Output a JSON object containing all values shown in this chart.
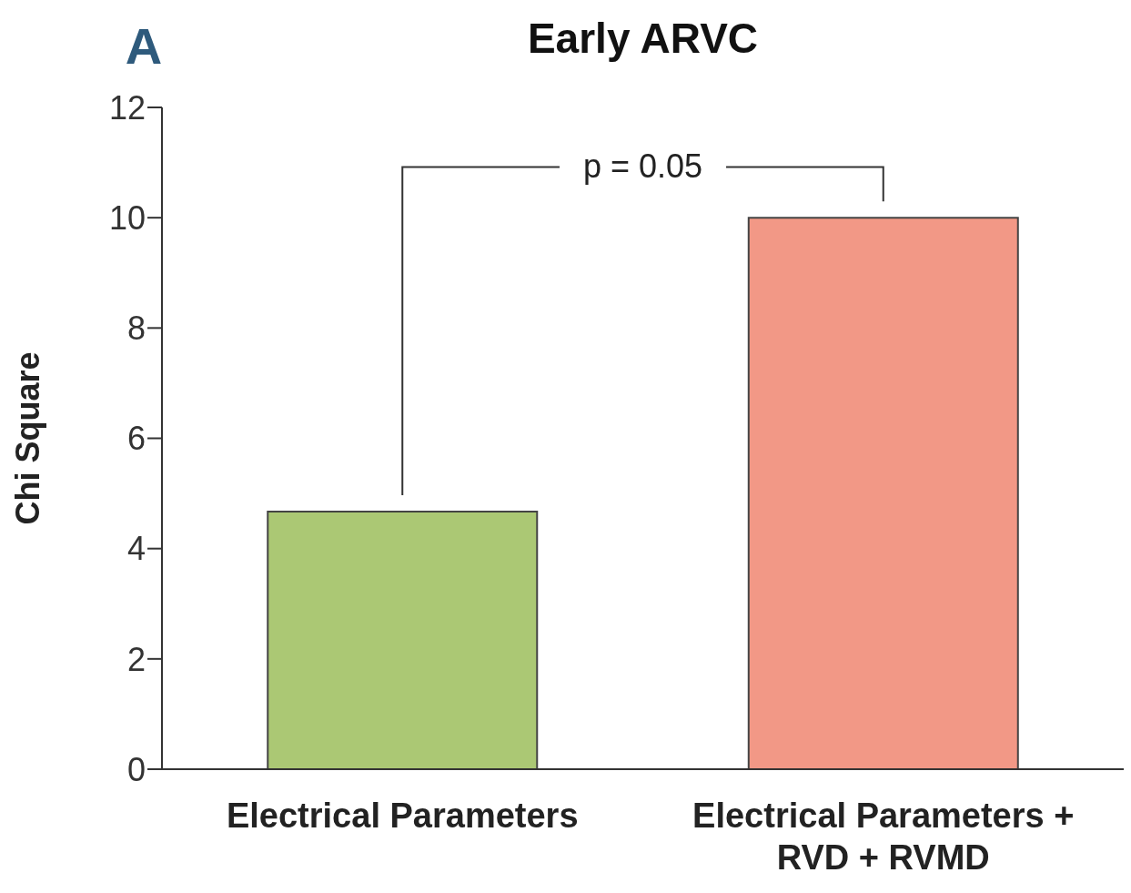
{
  "chart_data": {
    "type": "bar",
    "title": "Early ARVC",
    "ylabel": "Chi Square",
    "categories": [
      "Electrical Parameters",
      "Electrical Parameters + RVD + RVMD"
    ],
    "values": [
      4.67,
      10.0
    ],
    "colors": [
      "#abc874",
      "#f29886"
    ],
    "ylim": [
      0,
      12
    ],
    "yticks": [
      0,
      2,
      4,
      6,
      8,
      10,
      12
    ],
    "annotations": [
      "A",
      "p = 0.05"
    ]
  }
}
